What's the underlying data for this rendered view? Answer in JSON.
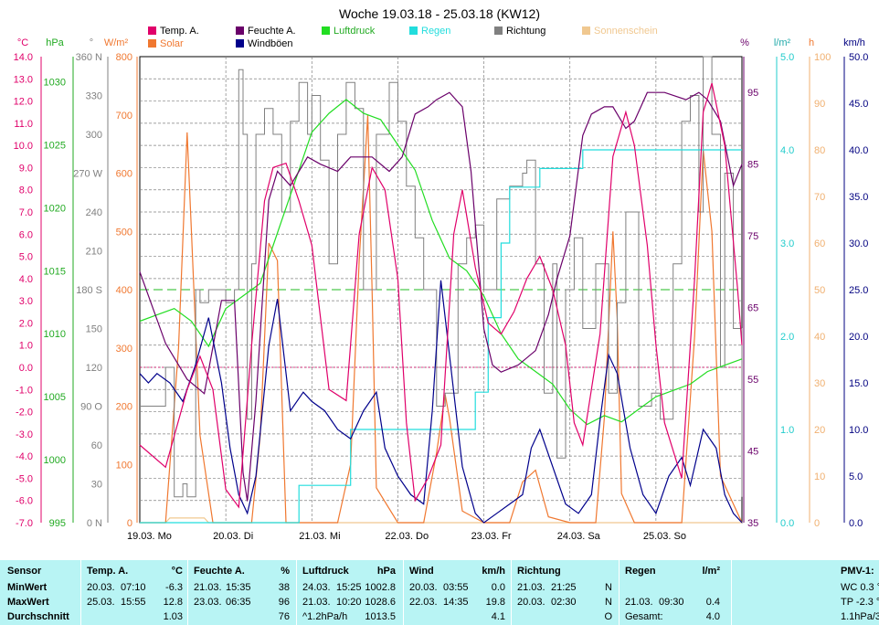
{
  "title": "Woche 19.03.18 - 25.03.18 (KW12)",
  "legend": {
    "temp": {
      "label": "Temp. A.",
      "color": "#e0006a"
    },
    "solar": {
      "label": "Solar",
      "color": "#f07830"
    },
    "feuchte": {
      "label": "Feuchte A.",
      "color": "#6a006a"
    },
    "wind": {
      "label": "Windböen",
      "color": "#00008b"
    },
    "luftdruck": {
      "label": "Luftdruck",
      "color": "#22dd22"
    },
    "regen": {
      "label": "Regen",
      "color": "#22dddd"
    },
    "richtung": {
      "label": "Richtung",
      "color": "#808080"
    },
    "sonne": {
      "label": "Sonnenschein",
      "color": "#f0c890"
    }
  },
  "units": {
    "temp": "°C",
    "press": "hPa",
    "dir": "°",
    "solar": "W/m²",
    "hum": "%",
    "rain": "l/m²",
    "sun": "h",
    "wind": "km/h"
  },
  "axes": {
    "temp": {
      "min": -7,
      "max": 14,
      "ticks": [
        "14.0",
        "13.0",
        "12.0",
        "11.0",
        "10.0",
        "9.0",
        "8.0",
        "7.0",
        "6.0",
        "5.0",
        "4.0",
        "3.0",
        "2.0",
        "1.0",
        "0.0",
        "-1.0",
        "-2.0",
        "-3.0",
        "-4.0",
        "-5.0",
        "-6.0",
        "-7.0"
      ]
    },
    "press": {
      "min": 995,
      "max": 1032,
      "ticks": [
        [
          "1030",
          1030
        ],
        [
          "1025",
          1025
        ],
        [
          "1020",
          1020
        ],
        [
          "1015",
          1015
        ],
        [
          "1010",
          1010
        ],
        [
          "1005",
          1005
        ],
        [
          "1000",
          1000
        ],
        [
          "995",
          995
        ]
      ]
    },
    "dir": {
      "min": 0,
      "max": 360,
      "ticks": [
        [
          "360 N",
          360
        ],
        [
          "330",
          330
        ],
        [
          "300",
          300
        ],
        [
          "270 W",
          270
        ],
        [
          "240",
          240
        ],
        [
          "210",
          210
        ],
        [
          "180 S",
          180
        ],
        [
          "150",
          150
        ],
        [
          "120",
          120
        ],
        [
          "90 O",
          90
        ],
        [
          "60",
          60
        ],
        [
          "30",
          30
        ],
        [
          "0 N",
          0
        ]
      ]
    },
    "solar": {
      "min": 0,
      "max": 800,
      "ticks": [
        "800",
        "700",
        "600",
        "500",
        "400",
        "300",
        "200",
        "100",
        "0"
      ]
    },
    "hum": {
      "min": 35,
      "max": 100,
      "ticks": [
        [
          "95",
          95
        ],
        [
          "85",
          85
        ],
        [
          "75",
          75
        ],
        [
          "65",
          65
        ],
        [
          "55",
          55
        ],
        [
          "45",
          45
        ],
        [
          "35",
          35
        ]
      ]
    },
    "rain": {
      "min": 0,
      "max": 5,
      "ticks": [
        "5.0",
        "4.0",
        "3.0",
        "2.0",
        "1.0",
        "0.0"
      ]
    },
    "sun": {
      "min": 0,
      "max": 100,
      "ticks": [
        "100",
        "90",
        "80",
        "70",
        "60",
        "50",
        "40",
        "30",
        "20",
        "10",
        "0"
      ]
    },
    "wind": {
      "min": 0,
      "max": 50,
      "ticks": [
        "50.0",
        "45.0",
        "40.0",
        "35.0",
        "30.0",
        "25.0",
        "20.0",
        "15.0",
        "10.0",
        "5.0",
        "0.0"
      ]
    }
  },
  "chart_data": {
    "type": "line",
    "title": "Woche 19.03.18 - 25.03.18 (KW12)",
    "x_unit": "days since 19.03. 00:00",
    "x_labels": [
      "19.03. Mo",
      "20.03. Di",
      "21.03. Mi",
      "22.03. Do",
      "23.03. Fr",
      "24.03. Sa",
      "25.03. So"
    ],
    "grid": true,
    "reference_line": {
      "axis": "dir",
      "value": 180
    },
    "series": [
      {
        "key": "temp",
        "name": "Temp. A.",
        "axis": "temp",
        "x": [
          0,
          0.3,
          0.55,
          0.7,
          0.85,
          1.0,
          1.15,
          1.3,
          1.45,
          1.55,
          1.7,
          1.85,
          2.0,
          2.2,
          2.4,
          2.55,
          2.7,
          2.85,
          3.0,
          3.1,
          3.2,
          3.35,
          3.5,
          3.65,
          3.75,
          3.9,
          4.05,
          4.2,
          4.35,
          4.5,
          4.65,
          4.8,
          4.95,
          5.05,
          5.15,
          5.35,
          5.5,
          5.65,
          5.75,
          5.9,
          6.0,
          6.1,
          6.3,
          6.45,
          6.55,
          6.65,
          6.8,
          6.95,
          7.0
        ],
        "y": [
          -3.5,
          -4.5,
          -1.0,
          0.5,
          -1.0,
          -5.5,
          -6.3,
          1.0,
          7.5,
          9.0,
          9.2,
          7.5,
          5.5,
          -1.0,
          -1.5,
          6.0,
          9.0,
          8.0,
          4.0,
          -2.5,
          -6.0,
          -5.0,
          -3.5,
          6.0,
          8.0,
          4.5,
          2.0,
          1.5,
          2.5,
          4.0,
          5.0,
          3.5,
          1.0,
          -2.5,
          -3.5,
          1.5,
          9.5,
          11.5,
          10.0,
          5.5,
          1.0,
          -2.5,
          -5.0,
          4.0,
          11.5,
          12.8,
          10.0,
          3.5,
          1.0
        ]
      },
      {
        "key": "feuchte",
        "name": "Feuchte A.",
        "axis": "hum",
        "x": [
          0,
          0.3,
          0.55,
          0.75,
          0.95,
          1.1,
          1.2,
          1.25,
          1.35,
          1.5,
          1.6,
          1.75,
          1.95,
          2.1,
          2.3,
          2.45,
          2.7,
          2.9,
          3.05,
          3.2,
          3.35,
          3.45,
          3.6,
          3.75,
          3.85,
          4.0,
          4.1,
          4.2,
          4.4,
          4.6,
          4.75,
          4.85,
          5.0,
          5.15,
          5.25,
          5.4,
          5.5,
          5.65,
          5.75,
          5.9,
          6.1,
          6.35,
          6.5,
          6.6,
          6.75,
          6.9,
          7.0
        ],
        "y": [
          70,
          60,
          55,
          53,
          66,
          66,
          42,
          38,
          52,
          80,
          84,
          82,
          86,
          85,
          84,
          86,
          86,
          84,
          86,
          92,
          93,
          94,
          95,
          93,
          84,
          62,
          57,
          56,
          57,
          59,
          64,
          69,
          75,
          89,
          92,
          93,
          93,
          90,
          91,
          95,
          95,
          94,
          95,
          94,
          91,
          82,
          85
        ]
      },
      {
        "key": "wind",
        "name": "Windböen",
        "axis": "wind",
        "x": [
          0,
          0.1,
          0.2,
          0.35,
          0.5,
          0.65,
          0.8,
          0.95,
          1.05,
          1.15,
          1.25,
          1.35,
          1.5,
          1.6,
          1.75,
          1.9,
          2.0,
          2.15,
          2.3,
          2.45,
          2.6,
          2.75,
          2.85,
          3.0,
          3.15,
          3.3,
          3.4,
          3.5,
          3.6,
          3.75,
          3.9,
          4.0,
          4.15,
          4.3,
          4.45,
          4.55,
          4.65,
          4.8,
          4.95,
          5.1,
          5.25,
          5.35,
          5.45,
          5.55,
          5.7,
          5.85,
          6.0,
          6.15,
          6.3,
          6.4,
          6.55,
          6.7,
          6.8,
          6.9,
          7.0
        ],
        "y": [
          16,
          15,
          16,
          15,
          13,
          17,
          22,
          15,
          8,
          3,
          1,
          5,
          19,
          24,
          12,
          14,
          13,
          12,
          10,
          9,
          12,
          14,
          8,
          5,
          3,
          2,
          12,
          26,
          18,
          6,
          1,
          0,
          1,
          2,
          3,
          8,
          10,
          6,
          2,
          1,
          3,
          11,
          18,
          16,
          8,
          3,
          1,
          5,
          7,
          4,
          10,
          8,
          3,
          1,
          0
        ]
      },
      {
        "key": "luftdruck",
        "name": "Luftdruck",
        "axis": "press",
        "x": [
          0,
          0.2,
          0.4,
          0.6,
          0.8,
          1.0,
          1.2,
          1.4,
          1.6,
          1.8,
          2.0,
          2.2,
          2.4,
          2.6,
          2.8,
          3.0,
          3.2,
          3.4,
          3.6,
          3.8,
          4.0,
          4.2,
          4.4,
          4.6,
          4.8,
          5.0,
          5.2,
          5.4,
          5.6,
          5.8,
          6.0,
          6.2,
          6.4,
          6.6,
          6.8,
          7.0
        ],
        "y": [
          1011,
          1011.5,
          1012,
          1011,
          1009,
          1012,
          1013,
          1014,
          1018,
          1022,
          1026,
          1027.5,
          1028.6,
          1027.5,
          1027,
          1025,
          1023,
          1019,
          1016,
          1015,
          1013,
          1010,
          1008,
          1007,
          1006,
          1004,
          1002.8,
          1003.5,
          1003,
          1004,
          1005,
          1005.5,
          1006,
          1007,
          1007.5,
          1008
        ]
      },
      {
        "key": "regen",
        "name": "Regen",
        "axis": "rain",
        "x": [
          0,
          1.8,
          1.85,
          2.4,
          2.45,
          3.3,
          3.8,
          3.9,
          4.05,
          4.2,
          4.3,
          4.6,
          4.65,
          5.1,
          5.15,
          7.0
        ],
        "y": [
          0,
          0,
          0.4,
          0.4,
          1.0,
          1.0,
          1.0,
          1.4,
          2.2,
          3.0,
          3.6,
          3.6,
          3.8,
          3.8,
          4.0,
          4.0
        ]
      },
      {
        "key": "solar",
        "name": "Solar",
        "axis": "solar",
        "x": [
          0,
          0.3,
          0.45,
          0.55,
          0.6,
          0.7,
          0.85,
          1.0,
          1.3,
          1.4,
          1.5,
          1.6,
          1.7,
          2.0,
          2.3,
          2.45,
          2.55,
          2.65,
          2.7,
          2.75,
          3.0,
          3.3,
          3.45,
          3.55,
          3.6,
          3.75,
          4.0,
          4.3,
          4.45,
          4.6,
          4.75,
          5.0,
          5.3,
          5.4,
          5.5,
          5.55,
          5.6,
          5.75,
          6.0,
          6.3,
          6.45,
          6.55,
          6.65,
          6.75,
          7.0
        ],
        "y": [
          0,
          0,
          300,
          670,
          500,
          150,
          0,
          0,
          0,
          150,
          480,
          450,
          0,
          0,
          0,
          100,
          450,
          700,
          400,
          60,
          0,
          0,
          120,
          220,
          180,
          20,
          0,
          0,
          70,
          90,
          10,
          0,
          0,
          180,
          500,
          350,
          50,
          0,
          0,
          0,
          320,
          640,
          500,
          80,
          0
        ]
      },
      {
        "key": "richtung",
        "name": "Richtung",
        "axis": "dir",
        "x": [
          0,
          0.25,
          0.3,
          0.4,
          0.5,
          0.55,
          0.65,
          0.7,
          0.8,
          0.9,
          1.0,
          1.1,
          1.15,
          1.2,
          1.25,
          1.3,
          1.35,
          1.45,
          1.55,
          1.65,
          1.75,
          1.85,
          1.95,
          2.0,
          2.1,
          2.2,
          2.3,
          2.4,
          2.5,
          2.6,
          2.75,
          2.9,
          3.0,
          3.1,
          3.2,
          3.3,
          3.45,
          3.55,
          3.7,
          3.8,
          3.9,
          4.0,
          4.15,
          4.3,
          4.45,
          4.5,
          4.6,
          4.7,
          4.8,
          4.85,
          4.95,
          5.05,
          5.15,
          5.3,
          5.45,
          5.55,
          5.65,
          5.8,
          5.95,
          6.05,
          6.2,
          6.3,
          6.4,
          6.5,
          6.55,
          6.65,
          6.75,
          6.8,
          6.9,
          7.0
        ],
        "y": [
          90,
          90,
          120,
          20,
          30,
          20,
          180,
          170,
          180,
          180,
          170,
          180,
          350,
          300,
          80,
          200,
          300,
          320,
          300,
          240,
          310,
          340,
          300,
          330,
          280,
          200,
          300,
          340,
          320,
          180,
          300,
          340,
          310,
          260,
          220,
          180,
          90,
          100,
          200,
          220,
          230,
          180,
          250,
          260,
          270,
          280,
          200,
          100,
          200,
          50,
          180,
          220,
          150,
          200,
          100,
          170,
          240,
          90,
          100,
          80,
          200,
          310,
          330,
          240,
          360,
          300,
          120,
          270,
          150,
          20
        ]
      },
      {
        "key": "sonne",
        "name": "Sonnenschein",
        "axis": "sun",
        "x": [
          0,
          0.3,
          0.35,
          0.75,
          0.8,
          7.0
        ],
        "y": [
          0,
          0,
          1,
          1,
          0,
          0
        ]
      }
    ]
  },
  "stats": {
    "sensor": {
      "header": "Sensor",
      "rows": [
        "MinWert",
        "MaxWert",
        "Durchschnitt"
      ]
    },
    "temp": {
      "header": "Temp. A.",
      "unit": "°C",
      "rows": [
        [
          "20.03.",
          "07:10",
          "-6.3"
        ],
        [
          "25.03.",
          "15:55",
          "12.8"
        ],
        [
          "",
          "",
          "1.03"
        ]
      ]
    },
    "hum": {
      "header": "Feuchte A.",
      "unit": "%",
      "rows": [
        [
          "21.03.",
          "15:35",
          "38"
        ],
        [
          "23.03.",
          "06:35",
          "96"
        ],
        [
          "",
          "",
          "76"
        ]
      ]
    },
    "press": {
      "header": "Luftdruck",
      "unit": "hPa",
      "rows": [
        [
          "24.03.",
          "15:25",
          "1002.8"
        ],
        [
          "21.03.",
          "10:20",
          "1028.6"
        ],
        [
          "^1.2hPa/h",
          "",
          "1013.5"
        ]
      ]
    },
    "wind": {
      "header": "Wind",
      "unit": "km/h",
      "rows": [
        [
          "20.03.",
          "03:55",
          "0.0"
        ],
        [
          "22.03.",
          "14:35",
          "19.8"
        ],
        [
          "",
          "",
          "4.1"
        ]
      ]
    },
    "dir": {
      "header": "Richtung",
      "unit": "",
      "rows": [
        [
          "21.03.",
          "21:25",
          "N"
        ],
        [
          "20.03.",
          "02:30",
          "N"
        ],
        [
          "",
          "",
          "O"
        ]
      ]
    },
    "rain": {
      "header": "Regen",
      "unit": "l/m²",
      "rows": [
        [
          "",
          "",
          ""
        ],
        [
          "21.03.",
          "09:30",
          "0.4"
        ],
        [
          "Gesamt:",
          "",
          "4.0"
        ]
      ]
    },
    "pmv": {
      "header": "PMV-1:",
      "rows": [
        "WC 0.3 °",
        "TP -2.3 °",
        "1.1hPa/3"
      ]
    }
  }
}
